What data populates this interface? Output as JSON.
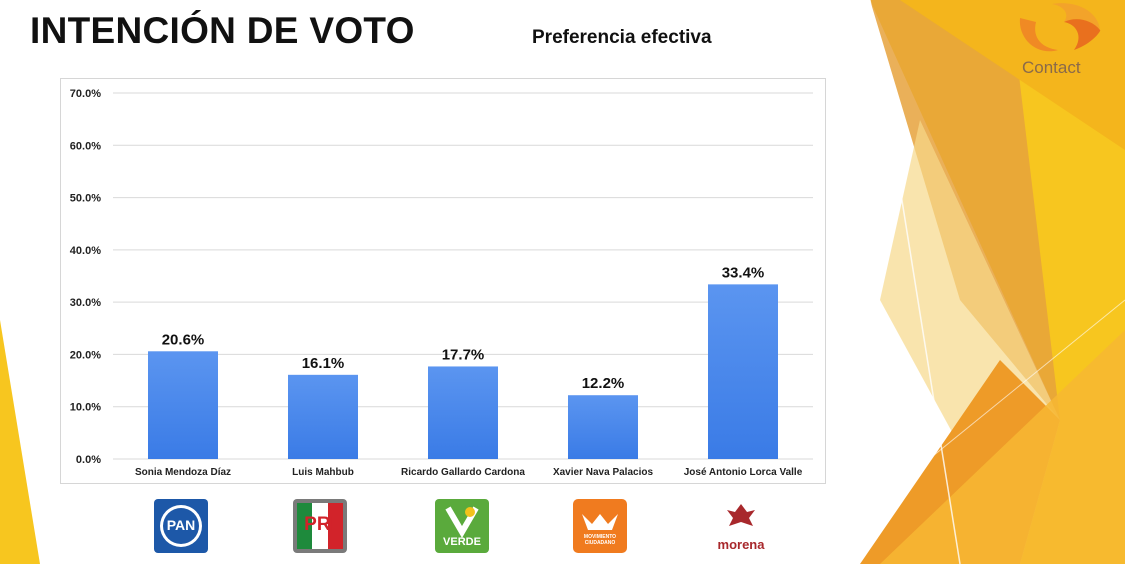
{
  "slide": {
    "title": "INTENCIÓN DE VOTO",
    "subtitle": "Preferencia efectiva",
    "brand": "Contact"
  },
  "colors": {
    "bar": "#3a7be6",
    "bar_light": "#5b95f0",
    "accent_yellow": "#f6c21c",
    "accent_orange": "#e98a1e"
  },
  "parties": [
    {
      "icon": "pan-logo-icon",
      "label": "PAN"
    },
    {
      "icon": "pri-logo-icon",
      "label": "PRI"
    },
    {
      "icon": "verde-logo-icon",
      "label": "VERDE"
    },
    {
      "icon": "movimiento-ciudadano-logo-icon",
      "label": "MOVIMIENTO CIUDADANO"
    },
    {
      "icon": "morena-logo-icon",
      "label": "morena"
    }
  ],
  "chart_data": {
    "type": "bar",
    "categories": [
      "Sonia Mendoza Díaz",
      "Luis Mahbub",
      "Ricardo Gallardo Cardona",
      "Xavier Nava Palacios",
      "José Antonio Lorca Valle"
    ],
    "values": [
      20.6,
      16.1,
      17.7,
      12.2,
      33.4
    ],
    "data_labels": [
      "20.6%",
      "16.1%",
      "17.7%",
      "12.2%",
      "33.4%"
    ],
    "y_ticks": [
      "0.0%",
      "10.0%",
      "20.0%",
      "30.0%",
      "40.0%",
      "50.0%",
      "60.0%",
      "70.0%"
    ],
    "ylim": [
      0,
      70
    ],
    "grid": true,
    "legend": "none",
    "title": "",
    "xlabel": "",
    "ylabel": ""
  }
}
